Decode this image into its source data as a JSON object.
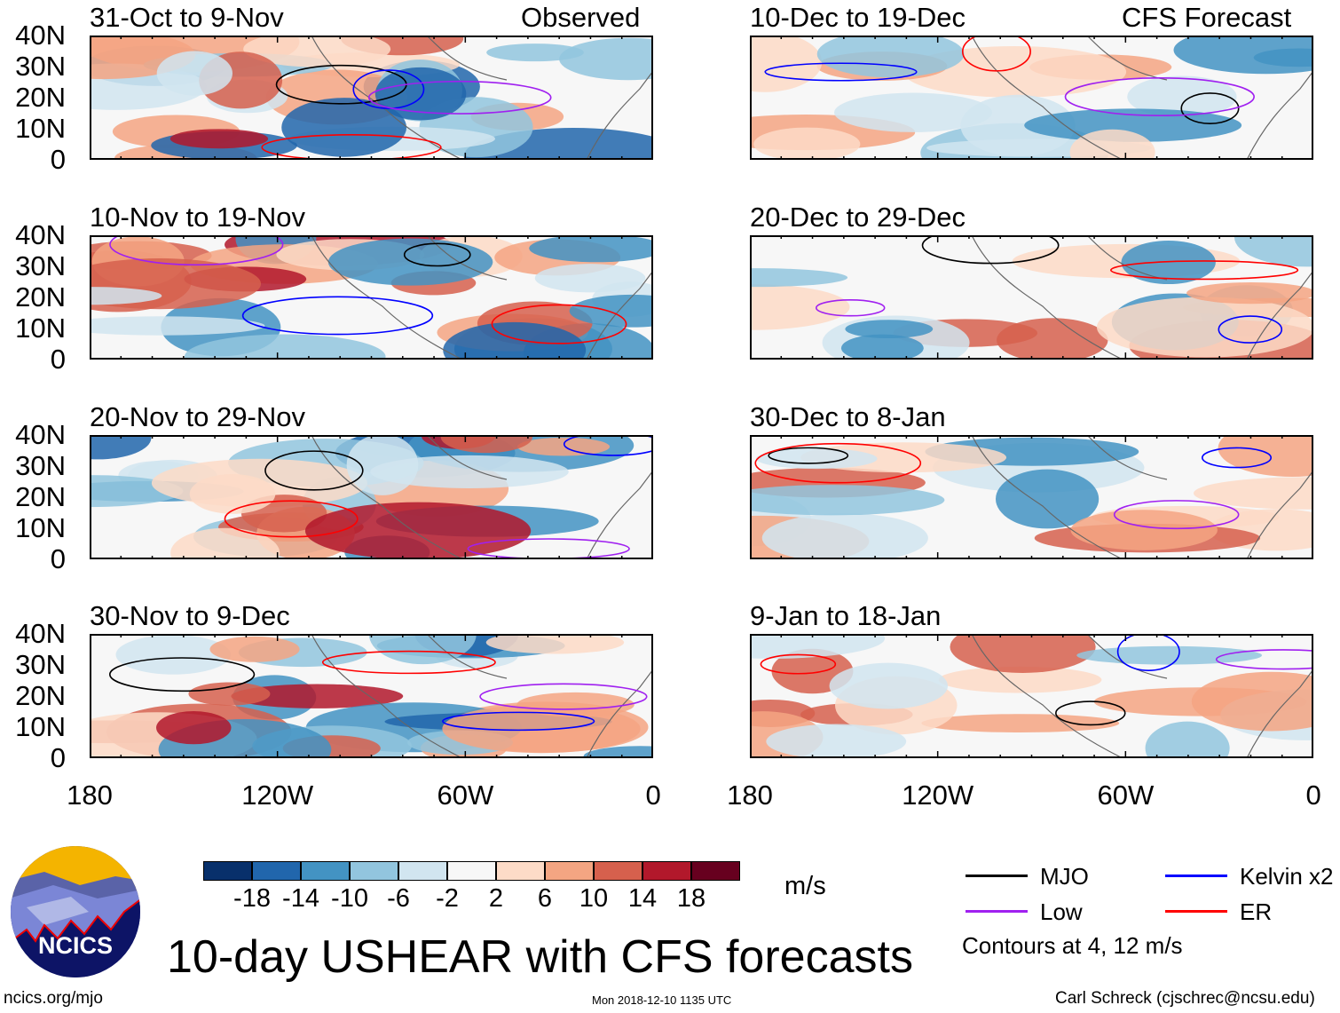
{
  "header": {
    "observed_label": "Observed",
    "forecast_label": "CFS Forecast"
  },
  "panels_left": [
    {
      "title": "31-Oct to 9-Nov"
    },
    {
      "title": "10-Nov to 19-Nov"
    },
    {
      "title": "20-Nov to 29-Nov"
    },
    {
      "title": "30-Nov to 9-Dec"
    }
  ],
  "panels_right": [
    {
      "title": "10-Dec to 19-Dec"
    },
    {
      "title": "20-Dec to 29-Dec"
    },
    {
      "title": "30-Dec to 8-Jan"
    },
    {
      "title": "9-Jan to 18-Jan"
    }
  ],
  "y_ticks": [
    "40N",
    "30N",
    "20N",
    "10N",
    "0"
  ],
  "x_ticks": [
    "180",
    "120W",
    "60W",
    "0"
  ],
  "colorbar": {
    "colors": [
      "#08306b",
      "#2166ac",
      "#4393c3",
      "#92c5de",
      "#d1e5f0",
      "#f7f7f7",
      "#fddbc7",
      "#f4a582",
      "#d6604d",
      "#b2182b",
      "#67001f"
    ],
    "labels": [
      "-18",
      "-14",
      "-10",
      "-6",
      "-2",
      "2",
      "6",
      "10",
      "14",
      "18"
    ],
    "units": "m/s"
  },
  "legend": {
    "items": [
      {
        "label": "MJO",
        "color": "#000000"
      },
      {
        "label": "Kelvin x2",
        "color": "#0000ff"
      },
      {
        "label": "Low",
        "color": "#a020f0"
      },
      {
        "label": "ER",
        "color": "#ff0000"
      }
    ],
    "note": "Contours at 4, 12 m/s"
  },
  "logo": {
    "text": "NCICS"
  },
  "title": "10-day USHEAR with CFS forecasts",
  "footer": {
    "url": "ncics.org/mjo",
    "timestamp": "Mon 2018-12-10 1135 UTC",
    "credit": "Carl Schreck (cjschrec@ncsu.edu)"
  }
}
